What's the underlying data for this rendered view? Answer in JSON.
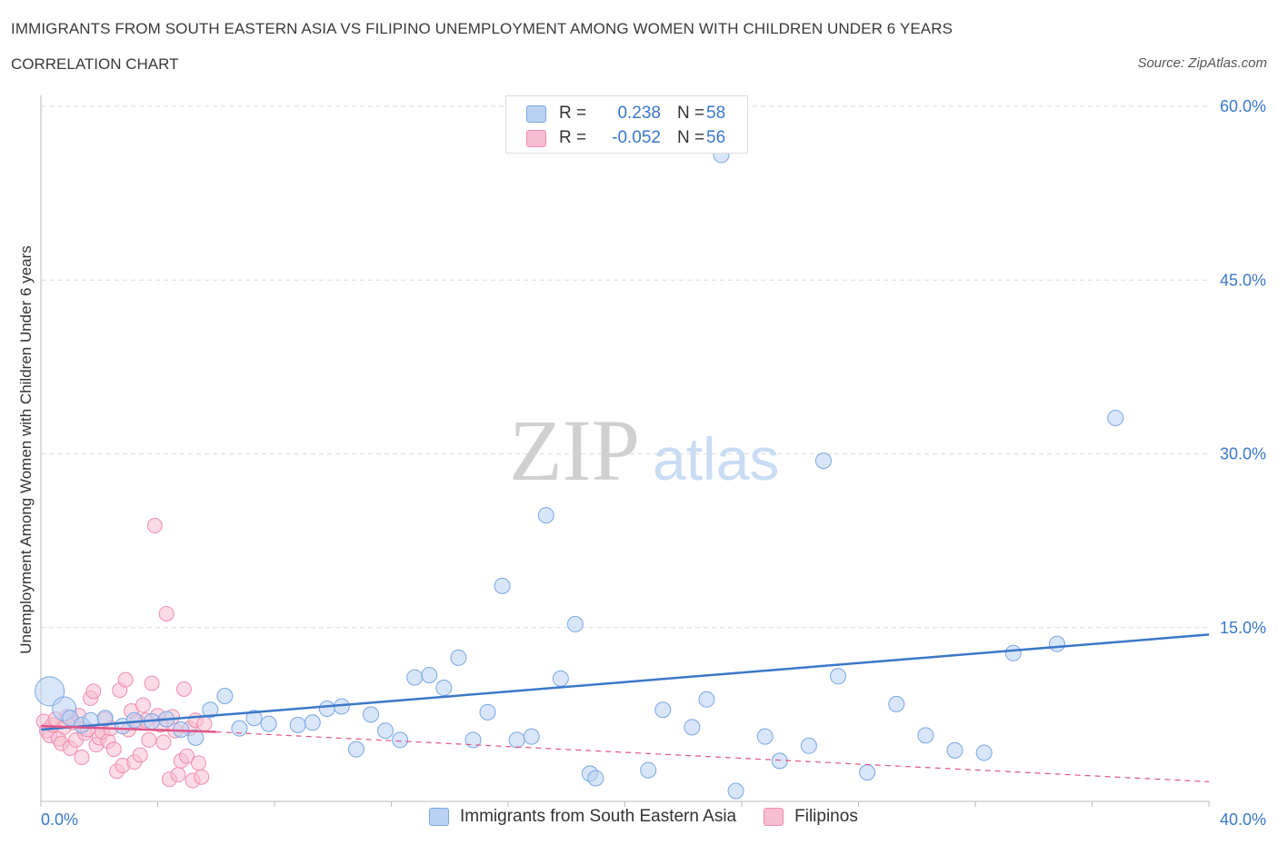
{
  "title": "IMMIGRANTS FROM SOUTH EASTERN ASIA VS FILIPINO UNEMPLOYMENT AMONG WOMEN WITH CHILDREN UNDER 6 YEARS",
  "subtitle": "CORRELATION CHART",
  "source": "Source: ZipAtlas.com",
  "watermark": {
    "zip": "ZIP",
    "atlas": "atlas"
  },
  "colors": {
    "blue": "#3a78c9",
    "blue_fill": "#b9d2f4",
    "blue_stroke": "#7aa7e3",
    "pink": "#e0558a",
    "pink_fill": "#f7bdd0",
    "pink_stroke": "#ee8fae",
    "grid": "#dcdcdc"
  },
  "legend": {
    "rows": [
      {
        "r_label": "R =",
        "r_value": "0.238",
        "n_label": "N =",
        "n_value": "58"
      },
      {
        "r_label": "R =",
        "r_value": "-0.052",
        "n_label": "N =",
        "n_value": "56"
      }
    ]
  },
  "bottom_legend": {
    "series1": "Immigrants from South Eastern Asia",
    "series2": "Filipinos"
  },
  "chart_data": {
    "type": "scatter",
    "title": "IMMIGRANTS FROM SOUTH EASTERN ASIA VS FILIPINO UNEMPLOYMENT AMONG WOMEN WITH CHILDREN UNDER 6 YEARS",
    "xlabel": "",
    "ylabel": "Unemployment Among Women with Children Under 6 years",
    "xlim": [
      0,
      40
    ],
    "ylim": [
      0,
      60
    ],
    "x_tick_labels": [
      "0.0%",
      "40.0%"
    ],
    "y_tick_labels": [
      "15.0%",
      "30.0%",
      "45.0%",
      "60.0%"
    ],
    "y_ticks": [
      15,
      30,
      45,
      60
    ],
    "series": [
      {
        "name": "Immigrants from South Eastern Asia",
        "color": "blue",
        "trend": [
          [
            0,
            6.2
          ],
          [
            40,
            14.4
          ]
        ],
        "points": [
          [
            0.3,
            9.5
          ],
          [
            0.8,
            8.0
          ],
          [
            1.0,
            7.2
          ],
          [
            1.4,
            6.6
          ],
          [
            1.7,
            7.0
          ],
          [
            2.2,
            7.2
          ],
          [
            2.8,
            6.5
          ],
          [
            3.2,
            7.0
          ],
          [
            3.8,
            6.9
          ],
          [
            4.3,
            7.1
          ],
          [
            4.8,
            6.2
          ],
          [
            5.3,
            5.5
          ],
          [
            5.8,
            7.9
          ],
          [
            6.3,
            9.1
          ],
          [
            6.8,
            6.3
          ],
          [
            7.3,
            7.2
          ],
          [
            7.8,
            6.7
          ],
          [
            8.8,
            6.6
          ],
          [
            9.3,
            6.8
          ],
          [
            9.8,
            8.0
          ],
          [
            10.3,
            8.2
          ],
          [
            10.8,
            4.5
          ],
          [
            11.3,
            7.5
          ],
          [
            11.8,
            6.1
          ],
          [
            12.3,
            5.3
          ],
          [
            12.8,
            10.7
          ],
          [
            13.3,
            10.9
          ],
          [
            13.8,
            9.8
          ],
          [
            14.3,
            12.4
          ],
          [
            14.8,
            5.3
          ],
          [
            15.3,
            7.7
          ],
          [
            15.8,
            18.6
          ],
          [
            16.3,
            5.3
          ],
          [
            16.8,
            5.6
          ],
          [
            17.3,
            24.7
          ],
          [
            17.8,
            10.6
          ],
          [
            18.3,
            15.3
          ],
          [
            18.8,
            2.4
          ],
          [
            19.0,
            2.0
          ],
          [
            20.8,
            2.7
          ],
          [
            21.3,
            7.9
          ],
          [
            22.3,
            6.4
          ],
          [
            22.8,
            8.8
          ],
          [
            23.3,
            55.8
          ],
          [
            23.8,
            0.9
          ],
          [
            24.8,
            5.6
          ],
          [
            25.3,
            3.5
          ],
          [
            26.3,
            4.8
          ],
          [
            26.8,
            29.4
          ],
          [
            27.3,
            10.8
          ],
          [
            28.3,
            2.5
          ],
          [
            29.3,
            8.4
          ],
          [
            30.3,
            5.7
          ],
          [
            31.3,
            4.4
          ],
          [
            32.3,
            4.2
          ],
          [
            33.3,
            12.8
          ],
          [
            34.8,
            13.6
          ],
          [
            36.8,
            33.1
          ]
        ]
      },
      {
        "name": "Filipinos",
        "color": "pink",
        "trend": [
          [
            0,
            6.5
          ],
          [
            6,
            6.0
          ]
        ],
        "trend_ext": [
          [
            6,
            6.0
          ],
          [
            40,
            1.7
          ]
        ],
        "points": [
          [
            0.1,
            6.9
          ],
          [
            0.2,
            6.1
          ],
          [
            0.3,
            5.7
          ],
          [
            0.4,
            6.6
          ],
          [
            0.5,
            7.1
          ],
          [
            0.6,
            5.4
          ],
          [
            0.7,
            5.0
          ],
          [
            0.8,
            6.4
          ],
          [
            0.9,
            7.3
          ],
          [
            1.0,
            4.6
          ],
          [
            1.1,
            6.8
          ],
          [
            1.2,
            5.3
          ],
          [
            1.3,
            7.4
          ],
          [
            1.4,
            3.8
          ],
          [
            1.5,
            5.9
          ],
          [
            1.6,
            6.2
          ],
          [
            1.7,
            8.9
          ],
          [
            1.8,
            9.5
          ],
          [
            1.9,
            4.9
          ],
          [
            2.0,
            5.5
          ],
          [
            2.1,
            6.0
          ],
          [
            2.2,
            7.1
          ],
          [
            2.3,
            5.2
          ],
          [
            2.4,
            6.3
          ],
          [
            2.5,
            4.5
          ],
          [
            2.6,
            2.6
          ],
          [
            2.7,
            9.6
          ],
          [
            2.8,
            3.1
          ],
          [
            2.9,
            10.5
          ],
          [
            3.0,
            6.2
          ],
          [
            3.1,
            7.8
          ],
          [
            3.2,
            3.4
          ],
          [
            3.3,
            6.9
          ],
          [
            3.4,
            4.0
          ],
          [
            3.5,
            8.3
          ],
          [
            3.6,
            7.0
          ],
          [
            3.7,
            5.3
          ],
          [
            3.8,
            10.2
          ],
          [
            3.9,
            23.8
          ],
          [
            4.0,
            7.4
          ],
          [
            4.1,
            6.6
          ],
          [
            4.2,
            5.1
          ],
          [
            4.3,
            16.2
          ],
          [
            4.4,
            1.9
          ],
          [
            4.5,
            7.3
          ],
          [
            4.6,
            6.1
          ],
          [
            4.7,
            2.3
          ],
          [
            4.8,
            3.5
          ],
          [
            4.9,
            9.7
          ],
          [
            5.0,
            3.9
          ],
          [
            5.1,
            6.3
          ],
          [
            5.2,
            1.8
          ],
          [
            5.3,
            7.0
          ],
          [
            5.4,
            3.3
          ],
          [
            5.5,
            2.1
          ],
          [
            5.6,
            6.7
          ]
        ]
      }
    ]
  }
}
